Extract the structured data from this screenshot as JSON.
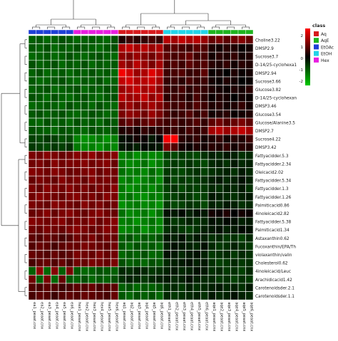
{
  "chart_data": {
    "type": "heatmap",
    "legend_title": "class",
    "color_scale": {
      "low": "#00c800",
      "mid": "#000000",
      "high": "#ff0000",
      "ticks": [
        "2",
        "1",
        "0",
        "-1",
        "-2"
      ]
    },
    "class_colors": {
      "Aq": "#d7191c",
      "AqE": "#1eb41e",
      "EtOAc": "#1f3fd6",
      "EtOH": "#22d4e8",
      "Hex": "#e81ee0"
    },
    "columns": [
      "ea1_peaat.cnx",
      "ea2_peaat.cnx",
      "ea3_peaat.cnx",
      "ea4_peaat.cnx",
      "ea5_peaat.cnx",
      "ea6_peaat.cnx",
      "hex1_peaat.cnx",
      "hex2_peaat.cnx",
      "hex3_peaat.cnx",
      "hex4_peaat.cnx",
      "hex5_peaat.cnx",
      "hex6_peaat.cnx",
      "aq1_peaat.cnx",
      "aq2_peaat.cnx",
      "aq3_peaat.cnx",
      "aq4_peaat.cnx",
      "aq5_peaat.cnx",
      "aq6_peaat.cnx",
      "eth1_peaat.cnx",
      "eth2_peaat.cnx",
      "eth3_peaat.cnx",
      "eth4_peaat.cnx",
      "eth5_peaat.cnx",
      "eth6_peaat.cnx",
      "aqe1_peaat.cnx",
      "aqe2_peaat.cnx",
      "aqe3_peaat.cnx",
      "aqe4_peaat.cnx",
      "aqe5_peaat.cnx",
      "aqe6_peaat.cnx"
    ],
    "column_classes": [
      "EtOAc",
      "EtOAc",
      "EtOAc",
      "EtOAc",
      "EtOAc",
      "EtOAc",
      "Hex",
      "Hex",
      "Hex",
      "Hex",
      "Hex",
      "Hex",
      "Aq",
      "Aq",
      "Aq",
      "Aq",
      "Aq",
      "Aq",
      "EtOH",
      "EtOH",
      "EtOH",
      "EtOH",
      "EtOH",
      "EtOH",
      "AqE",
      "AqE",
      "AqE",
      "AqE",
      "AqE",
      "AqE"
    ],
    "rows": [
      "Choline3.22",
      "DMSP2.9",
      "Sucrose3.7",
      "D-14/25-cyclohexa1",
      "DMSP2.94",
      "Sucrose3.66",
      "Glucose3.82",
      "D-14/25-cyclohexan",
      "DMSP3.46",
      "Glucose3.54",
      "Glucose/Alanine3.5",
      "DMSP2.7",
      "Sucrose4.22",
      "DMSP3.42",
      "Fattyacidder.5.3",
      "Fattyacidder.2.34",
      "Oleicacid2.02",
      "Fattyacidder.5.34",
      "Fattyacidder.1.3",
      "Fattyacidder.1.26",
      "Palmiticacid0.86",
      "4inoleicacid2.82",
      "Fattyacidder.5.38",
      "Palmiticacid1.34",
      "Astaxanthin0.62",
      "Fucoxanthin/EPA/Th",
      "violaxanthin/valin",
      "Cholesterol0.62",
      "4inoleicacid/Leuc",
      "Arachidicacid1.42",
      "Carotenoidsder.2.1",
      "Carotenoidsder.1.1"
    ],
    "values": [
      [
        -1.2,
        -1.1,
        -1.3,
        -1.2,
        -1.0,
        -1.1,
        -1.3,
        -1.2,
        -1.1,
        -1.2,
        -1.3,
        -1.0,
        0.3,
        0.6,
        0.4,
        0.5,
        0.7,
        0.5,
        1.8,
        1.6,
        1.9,
        1.7,
        1.8,
        1.5,
        1.0,
        1.2,
        0.9,
        1.1,
        1.3,
        1.0
      ],
      [
        -1.1,
        -1.2,
        -1.0,
        -1.3,
        -1.1,
        -1.2,
        -1.0,
        -1.1,
        -1.2,
        -1.3,
        -1.1,
        -1.0,
        1.7,
        1.9,
        1.6,
        1.8,
        1.5,
        1.7,
        0.8,
        0.9,
        0.7,
        0.6,
        0.9,
        0.8,
        0.3,
        0.2,
        0.4,
        0.3,
        0.1,
        0.2
      ],
      [
        -1.3,
        -1.2,
        -1.1,
        -1.3,
        -1.2,
        -1.0,
        -1.2,
        -1.3,
        -1.1,
        -1.0,
        -1.2,
        -1.3,
        1.4,
        1.2,
        1.5,
        1.3,
        1.1,
        1.4,
        0.9,
        0.7,
        0.8,
        1.0,
        0.6,
        0.7,
        0.2,
        0.4,
        0.3,
        0.5,
        0.2,
        0.3
      ],
      [
        -1.0,
        -1.2,
        -1.1,
        -1.0,
        -1.3,
        -1.1,
        -1.2,
        -1.0,
        -1.3,
        -1.1,
        -1.2,
        -1.1,
        1.6,
        1.3,
        1.8,
        1.5,
        1.2,
        1.6,
        0.7,
        0.8,
        0.6,
        0.9,
        0.7,
        0.8,
        0.4,
        0.3,
        0.5,
        0.2,
        0.4,
        0.3
      ],
      [
        -1.2,
        -1.0,
        -1.3,
        -1.2,
        -1.1,
        -1.3,
        -1.1,
        -1.2,
        -1.0,
        -1.2,
        -1.1,
        -1.3,
        2.4,
        2.0,
        1.5,
        1.7,
        2.2,
        1.8,
        0.6,
        0.7,
        0.8,
        0.5,
        0.6,
        0.9,
        0.1,
        0.2,
        0.0,
        0.3,
        0.1,
        0.2
      ],
      [
        -1.1,
        -1.3,
        -1.2,
        -1.1,
        -1.0,
        -1.2,
        -1.3,
        -1.1,
        -1.2,
        -1.0,
        -1.3,
        -1.2,
        1.9,
        2.1,
        1.7,
        1.8,
        2.0,
        1.6,
        0.5,
        0.6,
        0.4,
        0.7,
        0.5,
        0.6,
        0.2,
        0.1,
        0.3,
        0.2,
        0.0,
        0.1
      ],
      [
        -1.2,
        -1.1,
        -1.0,
        -1.3,
        -1.2,
        -1.1,
        -1.0,
        -1.3,
        -1.1,
        -1.2,
        -1.0,
        -1.1,
        1.5,
        1.7,
        1.9,
        1.6,
        1.8,
        1.4,
        0.6,
        0.5,
        0.7,
        0.4,
        0.6,
        0.5,
        0.3,
        0.2,
        0.1,
        0.3,
        0.2,
        0.4
      ],
      [
        -1.0,
        -1.1,
        -1.3,
        -1.0,
        -1.2,
        -1.3,
        -1.1,
        -1.0,
        -1.2,
        -1.3,
        -1.1,
        -1.0,
        1.8,
        1.5,
        1.6,
        1.9,
        1.4,
        1.7,
        0.4,
        0.6,
        0.5,
        0.3,
        0.7,
        0.4,
        0.1,
        0.3,
        0.2,
        0.0,
        0.2,
        0.1
      ],
      [
        -1.3,
        -1.2,
        -1.1,
        -1.2,
        -1.3,
        -1.0,
        -1.2,
        -1.1,
        -1.3,
        -1.0,
        -1.2,
        -1.3,
        1.3,
        1.5,
        1.2,
        1.4,
        1.6,
        1.3,
        0.8,
        0.6,
        0.7,
        0.5,
        0.8,
        0.6,
        0.3,
        0.4,
        0.2,
        0.3,
        0.5,
        0.2
      ],
      [
        -1.1,
        -1.0,
        -1.2,
        -1.1,
        -1.0,
        -1.2,
        -1.3,
        -1.2,
        -1.0,
        -1.1,
        -1.3,
        -1.2,
        1.2,
        1.4,
        1.3,
        1.1,
        1.5,
        1.2,
        0.7,
        0.5,
        0.6,
        0.8,
        0.5,
        0.7,
        0.2,
        0.3,
        0.4,
        0.1,
        0.2,
        0.3
      ],
      [
        -1.2,
        -1.3,
        -1.0,
        -1.2,
        -1.1,
        -1.3,
        -1.0,
        -1.2,
        -1.1,
        -1.3,
        -1.0,
        -1.1,
        0.8,
        1.0,
        0.7,
        0.9,
        1.1,
        0.8,
        0.6,
        0.7,
        0.5,
        0.6,
        0.8,
        0.5,
        0.9,
        1.1,
        0.8,
        1.0,
        1.2,
        0.9
      ],
      [
        -1.0,
        -1.1,
        -1.2,
        -1.3,
        -1.0,
        -1.1,
        -1.2,
        -1.3,
        -1.0,
        -1.1,
        -1.2,
        -1.0,
        0.3,
        0.4,
        0.2,
        0.5,
        0.3,
        0.4,
        0.5,
        0.6,
        0.4,
        0.7,
        0.5,
        0.6,
        1.6,
        1.8,
        1.5,
        1.7,
        1.9,
        1.6
      ],
      [
        -0.8,
        -0.9,
        -0.7,
        -0.8,
        -1.0,
        -0.9,
        -1.6,
        -1.8,
        -1.7,
        -1.5,
        -1.8,
        -1.6,
        -0.2,
        -0.1,
        0.2,
        0.1,
        -0.3,
        0.0,
        2.4,
        2.6,
        0.4,
        0.3,
        0.5,
        0.2,
        0.3,
        0.5,
        0.2,
        0.4,
        0.3,
        0.6
      ],
      [
        -0.7,
        -0.8,
        -0.9,
        -0.7,
        -0.8,
        -0.6,
        -1.5,
        -1.7,
        -1.6,
        -1.8,
        -1.5,
        -1.7,
        -0.3,
        -0.2,
        -0.4,
        -0.1,
        -0.2,
        -0.3,
        1.2,
        0.8,
        0.2,
        0.1,
        0.3,
        0.2,
        0.4,
        0.3,
        0.5,
        0.2,
        0.4,
        0.3
      ],
      [
        1.2,
        1.1,
        1.3,
        1.2,
        1.0,
        1.1,
        1.3,
        1.2,
        1.4,
        1.1,
        1.2,
        1.3,
        -1.6,
        -1.4,
        -1.8,
        -1.5,
        -1.7,
        -1.6,
        -0.8,
        -0.9,
        -0.7,
        -0.8,
        -0.9,
        -0.6,
        -0.4,
        -0.5,
        -0.3,
        -0.4,
        -0.6,
        -0.5
      ],
      [
        1.1,
        1.2,
        1.0,
        1.3,
        1.1,
        1.2,
        1.2,
        1.3,
        1.1,
        1.2,
        1.3,
        1.0,
        -1.5,
        -1.7,
        -1.6,
        -1.4,
        -1.8,
        -1.5,
        -0.9,
        -0.7,
        -0.8,
        -0.6,
        -0.8,
        -0.9,
        -0.5,
        -0.4,
        -0.6,
        -0.3,
        -0.5,
        -0.4
      ],
      [
        1.3,
        1.2,
        1.1,
        1.3,
        1.2,
        1.0,
        1.1,
        1.2,
        1.3,
        1.0,
        1.2,
        1.1,
        -1.4,
        -1.6,
        -1.5,
        -1.7,
        -1.3,
        -1.6,
        -0.7,
        -0.8,
        -0.9,
        -0.7,
        -0.6,
        -0.8,
        -0.6,
        -0.5,
        -0.4,
        -0.6,
        -0.3,
        -0.5
      ],
      [
        1.0,
        1.2,
        1.1,
        1.0,
        1.3,
        1.1,
        1.2,
        1.0,
        1.3,
        1.1,
        1.2,
        1.1,
        -1.7,
        -1.5,
        -1.8,
        -1.6,
        -1.4,
        -1.7,
        -0.6,
        -0.9,
        -0.7,
        -0.8,
        -0.7,
        -0.6,
        -0.4,
        -0.3,
        -0.5,
        -0.4,
        -0.2,
        -0.4
      ],
      [
        1.2,
        1.0,
        1.3,
        1.2,
        1.1,
        1.3,
        1.1,
        1.2,
        1.0,
        1.2,
        1.1,
        1.3,
        -1.5,
        -1.8,
        -1.6,
        -1.5,
        -1.7,
        -1.4,
        -0.8,
        -0.6,
        -0.9,
        -0.7,
        -0.8,
        -0.7,
        -0.5,
        -0.6,
        -0.4,
        -0.5,
        -0.3,
        -0.6
      ],
      [
        1.1,
        1.3,
        1.2,
        1.1,
        1.0,
        1.2,
        1.3,
        1.1,
        1.2,
        1.0,
        1.3,
        1.2,
        -1.6,
        -1.4,
        -1.7,
        -1.8,
        -1.5,
        -1.6,
        -0.9,
        -0.8,
        -0.6,
        -0.7,
        -0.9,
        -0.8,
        -0.3,
        -0.4,
        -0.5,
        -0.6,
        -0.4,
        -0.3
      ],
      [
        1.2,
        1.1,
        1.0,
        1.3,
        1.2,
        1.1,
        1.0,
        1.3,
        1.1,
        1.2,
        1.0,
        1.1,
        -1.8,
        -1.6,
        -1.5,
        -1.7,
        -1.6,
        -1.8,
        -0.7,
        -0.9,
        -0.8,
        -0.6,
        -0.7,
        -0.9,
        -0.4,
        -0.5,
        -0.3,
        -0.4,
        -0.6,
        -0.5
      ],
      [
        1.0,
        1.1,
        1.3,
        1.0,
        1.2,
        1.3,
        1.1,
        1.0,
        1.2,
        1.3,
        1.1,
        1.0,
        -1.4,
        -1.7,
        -1.6,
        -1.5,
        -1.8,
        -1.4,
        -0.2,
        -0.3,
        -0.1,
        -0.4,
        -0.2,
        -0.3,
        0.2,
        0.1,
        0.3,
        0.0,
        0.2,
        0.1
      ],
      [
        1.3,
        1.2,
        1.1,
        1.2,
        1.3,
        1.0,
        1.2,
        1.1,
        1.3,
        1.0,
        1.2,
        1.3,
        -1.6,
        -1.5,
        -1.8,
        -1.6,
        -1.4,
        -1.7,
        -0.5,
        -0.7,
        -0.6,
        -0.4,
        -0.6,
        -0.5,
        -0.2,
        -0.3,
        -0.1,
        -0.2,
        -0.4,
        -0.3
      ],
      [
        1.1,
        1.0,
        1.2,
        1.1,
        1.0,
        1.2,
        1.3,
        1.2,
        1.0,
        1.1,
        1.3,
        1.2,
        -1.7,
        -1.6,
        -1.4,
        -1.8,
        -1.5,
        -1.6,
        -0.6,
        -0.5,
        -0.7,
        -0.8,
        -0.6,
        -0.4,
        -0.3,
        -0.2,
        -0.4,
        -0.3,
        -0.1,
        -0.2
      ],
      [
        0.9,
        0.8,
        1.0,
        0.9,
        0.7,
        0.8,
        1.1,
        1.0,
        1.2,
        0.9,
        1.1,
        1.0,
        -1.2,
        -1.0,
        -1.3,
        -1.1,
        -1.2,
        -1.0,
        -0.3,
        -0.4,
        -0.2,
        -0.5,
        -0.3,
        -0.4,
        -0.6,
        -0.5,
        -0.7,
        -0.6,
        -0.8,
        -0.5
      ],
      [
        0.8,
        1.0,
        0.9,
        0.7,
        0.9,
        1.0,
        1.0,
        1.2,
        1.1,
        1.0,
        0.9,
        1.1,
        -1.1,
        -1.3,
        -1.0,
        -1.2,
        -1.1,
        -1.3,
        -0.4,
        -0.2,
        -0.3,
        -0.4,
        -0.5,
        -0.2,
        -0.5,
        -0.7,
        -0.6,
        -0.4,
        -0.6,
        -0.7
      ],
      [
        1.0,
        0.9,
        0.8,
        1.0,
        0.8,
        0.9,
        1.2,
        1.1,
        1.0,
        1.2,
        1.0,
        1.1,
        -1.3,
        -1.1,
        -1.2,
        -1.0,
        -1.3,
        -1.2,
        -0.2,
        -0.3,
        -0.5,
        -0.3,
        -0.2,
        -0.4,
        -0.7,
        -0.6,
        -0.5,
        -0.7,
        -0.5,
        -0.6
      ],
      [
        0.7,
        0.9,
        1.0,
        0.8,
        1.0,
        0.7,
        1.1,
        1.0,
        1.2,
        1.1,
        1.0,
        1.2,
        -1.0,
        -1.2,
        -1.1,
        -1.3,
        -1.0,
        -1.1,
        -0.5,
        -0.4,
        -0.3,
        -0.2,
        -0.4,
        -0.3,
        -0.6,
        -0.8,
        -0.7,
        -0.5,
        -0.7,
        -0.6
      ],
      [
        -1.2,
        1.4,
        -1.3,
        1.3,
        -1.2,
        1.2,
        -1.1,
        -1.3,
        -1.2,
        -1.0,
        -1.1,
        -1.2,
        -0.5,
        -0.6,
        -0.4,
        -0.5,
        -0.7,
        -0.6,
        -0.4,
        -0.3,
        -0.5,
        -0.4,
        -0.2,
        -0.3,
        -0.6,
        -0.5,
        -0.7,
        -0.6,
        -0.8,
        -0.5
      ],
      [
        1.1,
        -1.2,
        1.2,
        -1.3,
        1.0,
        -1.1,
        -1.2,
        -1.0,
        -1.3,
        -1.1,
        -1.2,
        -1.0,
        -0.6,
        -0.4,
        -0.5,
        -0.7,
        -0.5,
        -0.4,
        -0.3,
        -0.5,
        -0.4,
        -0.2,
        -0.4,
        -0.5,
        -0.5,
        -0.7,
        -0.6,
        -0.8,
        -0.6,
        -0.7
      ],
      [
        0.8,
        0.7,
        0.9,
        0.8,
        0.6,
        0.7,
        0.9,
        0.8,
        1.0,
        0.7,
        0.8,
        0.9,
        -1.2,
        -1.0,
        -1.3,
        -1.1,
        -1.2,
        -1.0,
        -0.6,
        -0.5,
        -0.7,
        -0.4,
        -0.6,
        -0.5,
        -0.4,
        -0.3,
        -0.5,
        -0.4,
        -0.6,
        -0.3
      ],
      [
        0.7,
        0.9,
        0.8,
        0.6,
        0.8,
        0.9,
        0.8,
        1.0,
        0.9,
        0.8,
        0.7,
        1.0,
        -1.1,
        -1.3,
        -1.0,
        -1.2,
        -1.0,
        -1.3,
        -0.5,
        -0.7,
        -0.6,
        -0.5,
        -0.4,
        -0.6,
        -0.3,
        -0.5,
        -0.4,
        -0.2,
        -0.4,
        -0.5
      ]
    ]
  }
}
